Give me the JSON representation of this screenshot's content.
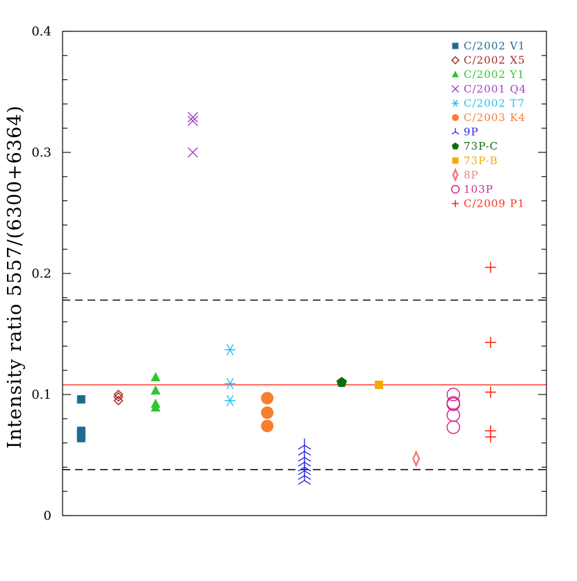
{
  "chart_data": {
    "type": "scatter",
    "title": "",
    "xlabel": "",
    "ylabel": "Intensity ratio 5557/(6300+6364)",
    "ylim": [
      0,
      0.4
    ],
    "yticks": [
      "0",
      "0.1",
      "0.2",
      "0.3",
      "0.4"
    ],
    "ytick_values": [
      0,
      0.1,
      0.2,
      0.3,
      0.4
    ],
    "yminor_step": 0.02,
    "xlim": [
      0.5,
      13.5
    ],
    "grid": false,
    "legend_position": "top-right",
    "reference_lines": [
      {
        "y": 0.108,
        "style": "solid",
        "color": "#ff2a1a"
      },
      {
        "y": 0.178,
        "style": "dashed",
        "color": "#000000"
      },
      {
        "y": 0.038,
        "style": "dashed",
        "color": "#000000"
      }
    ],
    "series": [
      {
        "name": "C/2002 V1",
        "color": "#1f6b8e",
        "marker": "square",
        "x": 1,
        "values": [
          0.096,
          0.07,
          0.068,
          0.066,
          0.064
        ]
      },
      {
        "name": "C/2002 X5",
        "color": "#a52a2a",
        "marker": "diamond-open",
        "x": 2,
        "values": [
          0.1,
          0.098,
          0.095
        ]
      },
      {
        "name": "C/2002 Y1",
        "color": "#2ec62e",
        "marker": "triangle",
        "x": 3,
        "values": [
          0.114,
          0.103,
          0.092,
          0.089
        ]
      },
      {
        "name": "C/2001 Q4",
        "color": "#a040c8",
        "marker": "x",
        "x": 4,
        "values": [
          0.329,
          0.326,
          0.3
        ]
      },
      {
        "name": "C/2002 T7",
        "color": "#20c0f0",
        "marker": "asterisk",
        "x": 5,
        "values": [
          0.137,
          0.109,
          0.095
        ]
      },
      {
        "name": "C/2003 K4",
        "color": "#f77f2e",
        "marker": "circle",
        "x": 6,
        "values": [
          0.097,
          0.085,
          0.074
        ]
      },
      {
        "name": "9P",
        "color": "#1f1fd6",
        "marker": "tri-down",
        "x": 7,
        "values": [
          0.058,
          0.053,
          0.048,
          0.044,
          0.04,
          0.037,
          0.033,
          0.029
        ]
      },
      {
        "name": "73P-C",
        "color": "#0a6e0a",
        "marker": "pentagon",
        "x": 8,
        "values": [
          0.11
        ]
      },
      {
        "name": "73P-B",
        "color": "#f7a800",
        "marker": "square",
        "x": 9,
        "values": [
          0.108
        ]
      },
      {
        "name": "8P",
        "color": "#f08080",
        "marker": "thin-diamond",
        "x": 10,
        "values": [
          0.047
        ]
      },
      {
        "name": "103P",
        "color": "#d4278f",
        "marker": "circle-open",
        "x": 11,
        "values": [
          0.1,
          0.093,
          0.092,
          0.083,
          0.073
        ]
      },
      {
        "name": "C/2009 P1",
        "color": "#ff2a1a",
        "marker": "plus",
        "x": 12,
        "values": [
          0.205,
          0.143,
          0.102,
          0.07,
          0.065
        ]
      }
    ]
  }
}
